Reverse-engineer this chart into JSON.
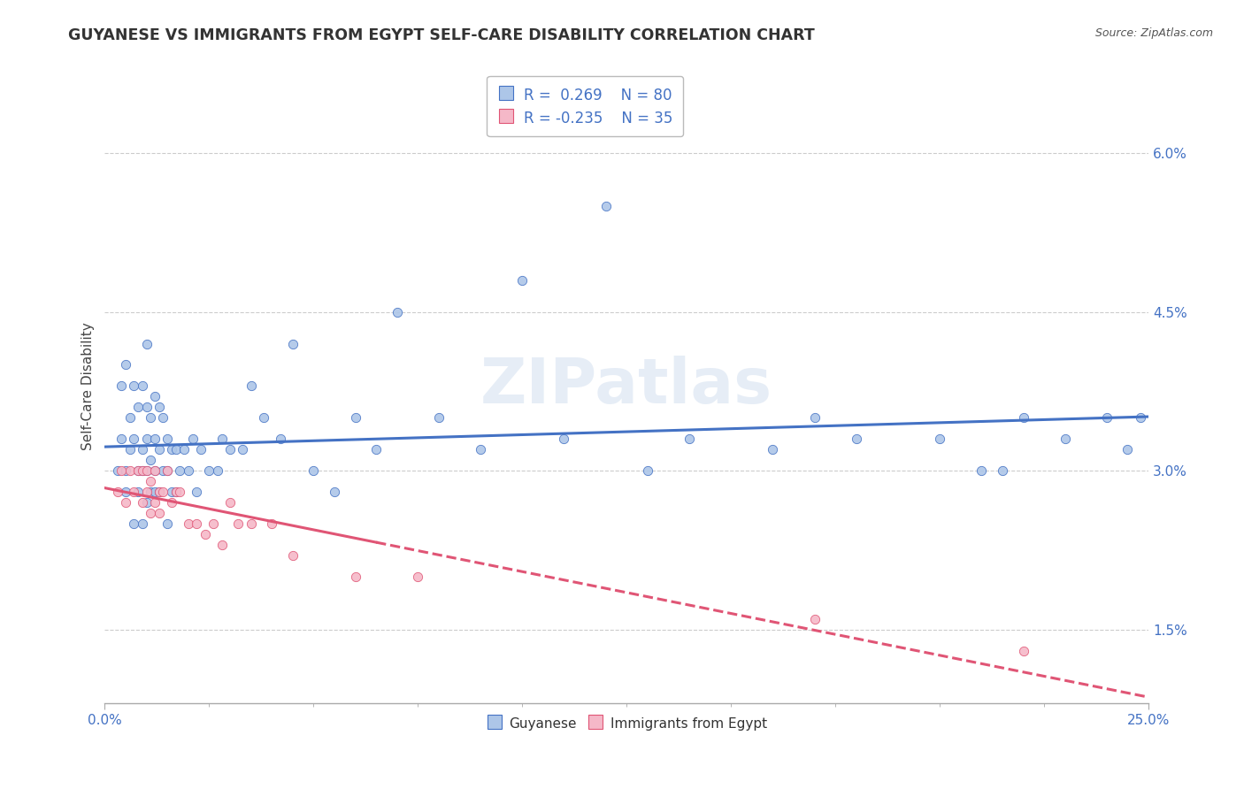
{
  "title": "GUYANESE VS IMMIGRANTS FROM EGYPT SELF-CARE DISABILITY CORRELATION CHART",
  "source": "Source: ZipAtlas.com",
  "ylabel": "Self-Care Disability",
  "xlim": [
    0.0,
    0.25
  ],
  "ylim": [
    0.008,
    0.068
  ],
  "yticks": [
    0.015,
    0.03,
    0.045,
    0.06
  ],
  "ytick_labels": [
    "1.5%",
    "3.0%",
    "4.5%",
    "6.0%"
  ],
  "xticks": [
    0.0,
    0.25
  ],
  "xtick_labels": [
    "0.0%",
    "25.0%"
  ],
  "watermark": "ZIPatlas",
  "color_blue": "#adc6e8",
  "color_pink": "#f5b8c8",
  "line_blue": "#4472c4",
  "line_pink": "#e05575",
  "text_blue": "#4472c4",
  "background": "#ffffff",
  "grid_color": "#cccccc",
  "guyanese_x": [
    0.003,
    0.004,
    0.004,
    0.005,
    0.005,
    0.005,
    0.006,
    0.006,
    0.007,
    0.007,
    0.007,
    0.008,
    0.008,
    0.008,
    0.009,
    0.009,
    0.009,
    0.009,
    0.01,
    0.01,
    0.01,
    0.01,
    0.01,
    0.011,
    0.011,
    0.011,
    0.012,
    0.012,
    0.012,
    0.012,
    0.013,
    0.013,
    0.013,
    0.014,
    0.014,
    0.015,
    0.015,
    0.015,
    0.016,
    0.016,
    0.017,
    0.017,
    0.018,
    0.019,
    0.02,
    0.021,
    0.022,
    0.023,
    0.025,
    0.027,
    0.028,
    0.03,
    0.033,
    0.035,
    0.038,
    0.042,
    0.045,
    0.05,
    0.055,
    0.06,
    0.065,
    0.07,
    0.08,
    0.09,
    0.1,
    0.11,
    0.12,
    0.13,
    0.14,
    0.16,
    0.17,
    0.18,
    0.2,
    0.21,
    0.215,
    0.22,
    0.23,
    0.24,
    0.245,
    0.248
  ],
  "guyanese_y": [
    0.03,
    0.033,
    0.038,
    0.028,
    0.03,
    0.04,
    0.032,
    0.035,
    0.025,
    0.033,
    0.038,
    0.028,
    0.03,
    0.036,
    0.025,
    0.03,
    0.032,
    0.038,
    0.027,
    0.03,
    0.033,
    0.036,
    0.042,
    0.028,
    0.031,
    0.035,
    0.028,
    0.03,
    0.033,
    0.037,
    0.028,
    0.032,
    0.036,
    0.03,
    0.035,
    0.025,
    0.03,
    0.033,
    0.028,
    0.032,
    0.028,
    0.032,
    0.03,
    0.032,
    0.03,
    0.033,
    0.028,
    0.032,
    0.03,
    0.03,
    0.033,
    0.032,
    0.032,
    0.038,
    0.035,
    0.033,
    0.042,
    0.03,
    0.028,
    0.035,
    0.032,
    0.045,
    0.035,
    0.032,
    0.048,
    0.033,
    0.055,
    0.03,
    0.033,
    0.032,
    0.035,
    0.033,
    0.033,
    0.03,
    0.03,
    0.035,
    0.033,
    0.035,
    0.032,
    0.035
  ],
  "egypt_x": [
    0.003,
    0.004,
    0.005,
    0.006,
    0.007,
    0.008,
    0.009,
    0.009,
    0.01,
    0.01,
    0.011,
    0.011,
    0.012,
    0.012,
    0.013,
    0.013,
    0.014,
    0.015,
    0.016,
    0.017,
    0.018,
    0.02,
    0.022,
    0.024,
    0.026,
    0.028,
    0.03,
    0.032,
    0.035,
    0.04,
    0.045,
    0.06,
    0.075,
    0.17,
    0.22
  ],
  "egypt_y": [
    0.028,
    0.03,
    0.027,
    0.03,
    0.028,
    0.03,
    0.027,
    0.03,
    0.028,
    0.03,
    0.026,
    0.029,
    0.027,
    0.03,
    0.026,
    0.028,
    0.028,
    0.03,
    0.027,
    0.028,
    0.028,
    0.025,
    0.025,
    0.024,
    0.025,
    0.023,
    0.027,
    0.025,
    0.025,
    0.025,
    0.022,
    0.02,
    0.02,
    0.016,
    0.013
  ]
}
